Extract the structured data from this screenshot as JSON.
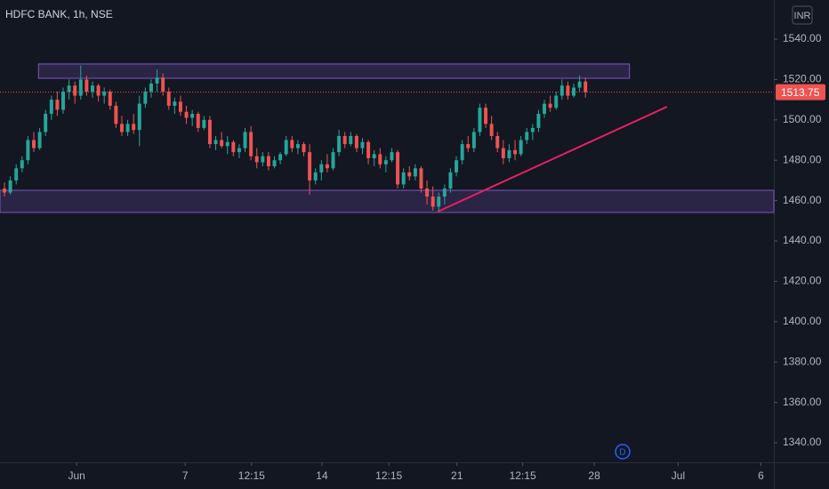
{
  "chart_data": {
    "type": "candlestick",
    "title": "HDFC BANK, 1h, NSE",
    "currency": "INR",
    "interval_badge": "D",
    "up_color": "#26a69a",
    "down_color": "#ef5350",
    "candles": [
      [
        1466,
        1469,
        1462,
        1464
      ],
      [
        1464,
        1472,
        1463,
        1470
      ],
      [
        1470,
        1478,
        1468,
        1476
      ],
      [
        1476,
        1482,
        1474,
        1480
      ],
      [
        1480,
        1492,
        1478,
        1490
      ],
      [
        1490,
        1494,
        1484,
        1486
      ],
      [
        1486,
        1496,
        1485,
        1494
      ],
      [
        1494,
        1505,
        1492,
        1503
      ],
      [
        1503,
        1512,
        1500,
        1510
      ],
      [
        1510,
        1514,
        1502,
        1505
      ],
      [
        1505,
        1516,
        1503,
        1514
      ],
      [
        1514,
        1520,
        1510,
        1517
      ],
      [
        1517,
        1519,
        1508,
        1512
      ],
      [
        1512,
        1527,
        1510,
        1520
      ],
      [
        1520,
        1522,
        1512,
        1514
      ],
      [
        1514,
        1519,
        1511,
        1517
      ],
      [
        1517,
        1518,
        1509,
        1512
      ],
      [
        1512,
        1516,
        1508,
        1514
      ],
      [
        1514,
        1515,
        1505,
        1507
      ],
      [
        1507,
        1509,
        1496,
        1498
      ],
      [
        1498,
        1502,
        1492,
        1494
      ],
      [
        1494,
        1500,
        1492,
        1498
      ],
      [
        1498,
        1503,
        1493,
        1495
      ],
      [
        1495,
        1512,
        1487,
        1508
      ],
      [
        1508,
        1516,
        1506,
        1514
      ],
      [
        1514,
        1520,
        1511,
        1518
      ],
      [
        1518,
        1525,
        1514,
        1521
      ],
      [
        1521,
        1523,
        1512,
        1514
      ],
      [
        1514,
        1516,
        1505,
        1507
      ],
      [
        1507,
        1511,
        1503,
        1509
      ],
      [
        1509,
        1512,
        1502,
        1504
      ],
      [
        1504,
        1507,
        1498,
        1501
      ],
      [
        1501,
        1505,
        1497,
        1503
      ],
      [
        1503,
        1504,
        1494,
        1496
      ],
      [
        1496,
        1502,
        1495,
        1500
      ],
      [
        1500,
        1502,
        1486,
        1488
      ],
      [
        1488,
        1492,
        1485,
        1490
      ],
      [
        1490,
        1494,
        1486,
        1487
      ],
      [
        1487,
        1492,
        1483,
        1489
      ],
      [
        1489,
        1490,
        1482,
        1484
      ],
      [
        1484,
        1488,
        1481,
        1486
      ],
      [
        1486,
        1496,
        1484,
        1494
      ],
      [
        1494,
        1497,
        1480,
        1482
      ],
      [
        1482,
        1486,
        1476,
        1479
      ],
      [
        1479,
        1484,
        1477,
        1482
      ],
      [
        1482,
        1484,
        1475,
        1477
      ],
      [
        1477,
        1482,
        1476,
        1480
      ],
      [
        1480,
        1484,
        1478,
        1483
      ],
      [
        1483,
        1492,
        1482,
        1490
      ],
      [
        1490,
        1492,
        1484,
        1486
      ],
      [
        1486,
        1490,
        1483,
        1488
      ],
      [
        1488,
        1489,
        1482,
        1484
      ],
      [
        1484,
        1488,
        1463,
        1470
      ],
      [
        1470,
        1476,
        1468,
        1474
      ],
      [
        1474,
        1480,
        1470,
        1478
      ],
      [
        1478,
        1483,
        1474,
        1476
      ],
      [
        1476,
        1486,
        1475,
        1484
      ],
      [
        1484,
        1495,
        1482,
        1492
      ],
      [
        1492,
        1494,
        1486,
        1488
      ],
      [
        1488,
        1494,
        1487,
        1492
      ],
      [
        1492,
        1493,
        1484,
        1486
      ],
      [
        1486,
        1491,
        1483,
        1489
      ],
      [
        1489,
        1490,
        1478,
        1481
      ],
      [
        1481,
        1485,
        1477,
        1483
      ],
      [
        1483,
        1486,
        1476,
        1478
      ],
      [
        1478,
        1482,
        1474,
        1480
      ],
      [
        1480,
        1486,
        1479,
        1484
      ],
      [
        1484,
        1485,
        1466,
        1468
      ],
      [
        1468,
        1476,
        1466,
        1474
      ],
      [
        1474,
        1477,
        1470,
        1472
      ],
      [
        1472,
        1478,
        1470,
        1476
      ],
      [
        1476,
        1477,
        1464,
        1466
      ],
      [
        1466,
        1470,
        1458,
        1462
      ],
      [
        1462,
        1467,
        1455,
        1457
      ],
      [
        1457,
        1464,
        1455,
        1462
      ],
      [
        1462,
        1468,
        1458,
        1466
      ],
      [
        1466,
        1476,
        1464,
        1474
      ],
      [
        1474,
        1482,
        1472,
        1480
      ],
      [
        1480,
        1490,
        1478,
        1488
      ],
      [
        1488,
        1492,
        1484,
        1486
      ],
      [
        1486,
        1496,
        1484,
        1494
      ],
      [
        1494,
        1508,
        1492,
        1506
      ],
      [
        1506,
        1508,
        1496,
        1498
      ],
      [
        1498,
        1502,
        1490,
        1492
      ],
      [
        1492,
        1494,
        1484,
        1486
      ],
      [
        1486,
        1490,
        1478,
        1481
      ],
      [
        1481,
        1488,
        1479,
        1485
      ],
      [
        1485,
        1490,
        1480,
        1483
      ],
      [
        1483,
        1492,
        1482,
        1490
      ],
      [
        1490,
        1496,
        1488,
        1494
      ],
      [
        1494,
        1498,
        1490,
        1496
      ],
      [
        1496,
        1505,
        1494,
        1503
      ],
      [
        1503,
        1510,
        1501,
        1508
      ],
      [
        1508,
        1512,
        1504,
        1506
      ],
      [
        1506,
        1514,
        1505,
        1512
      ],
      [
        1512,
        1520,
        1510,
        1517
      ],
      [
        1517,
        1519,
        1510,
        1512
      ],
      [
        1512,
        1518,
        1511,
        1516
      ],
      [
        1516,
        1522,
        1514,
        1519
      ],
      [
        1519,
        1521,
        1511,
        1513.75
      ]
    ],
    "last_price": 1513.75,
    "zones": [
      {
        "x": [
          5.8,
          106.5
        ],
        "y": [
          1520.6,
          1527.7
        ],
        "color": "#7e57c2"
      },
      {
        "x": [
          -0.76,
          131.1
        ],
        "y": [
          1454.1,
          1465.1
        ],
        "color": "#7e57c2"
      }
    ],
    "trend_line": {
      "x": [
        73.8,
        112.9
      ],
      "y": [
        1454.5,
        1506.5
      ],
      "color": "#e91e63"
    },
    "xlim": [
      -0.76,
      131.1
    ],
    "ylim": [
      1330.3,
      1559.4
    ],
    "xticks": [
      {
        "value": 12.3,
        "label": "Jun"
      },
      {
        "value": 30.8,
        "label": "7"
      },
      {
        "value": 42.1,
        "label": "12:15"
      },
      {
        "value": 54.1,
        "label": "14"
      },
      {
        "value": 65.5,
        "label": "12:15"
      },
      {
        "value": 77.1,
        "label": "21"
      },
      {
        "value": 88.3,
        "label": "12:15"
      },
      {
        "value": 100.5,
        "label": "28"
      },
      {
        "value": 114.8,
        "label": "Jul"
      },
      {
        "value": 128.9,
        "label": "6"
      }
    ],
    "yticks": [
      {
        "value": 1540,
        "label": "1540.00"
      },
      {
        "value": 1520,
        "label": "1520.00"
      },
      {
        "value": 1500,
        "label": "1500.00"
      },
      {
        "value": 1480,
        "label": "1480.00"
      },
      {
        "value": 1460,
        "label": "1460.00"
      },
      {
        "value": 1440,
        "label": "1440.00"
      },
      {
        "value": 1420,
        "label": "1420.00"
      },
      {
        "value": 1400,
        "label": "1400.00"
      },
      {
        "value": 1380,
        "label": "1380.00"
      },
      {
        "value": 1360,
        "label": "1360.00"
      },
      {
        "value": 1340,
        "label": "1340.00"
      }
    ]
  }
}
